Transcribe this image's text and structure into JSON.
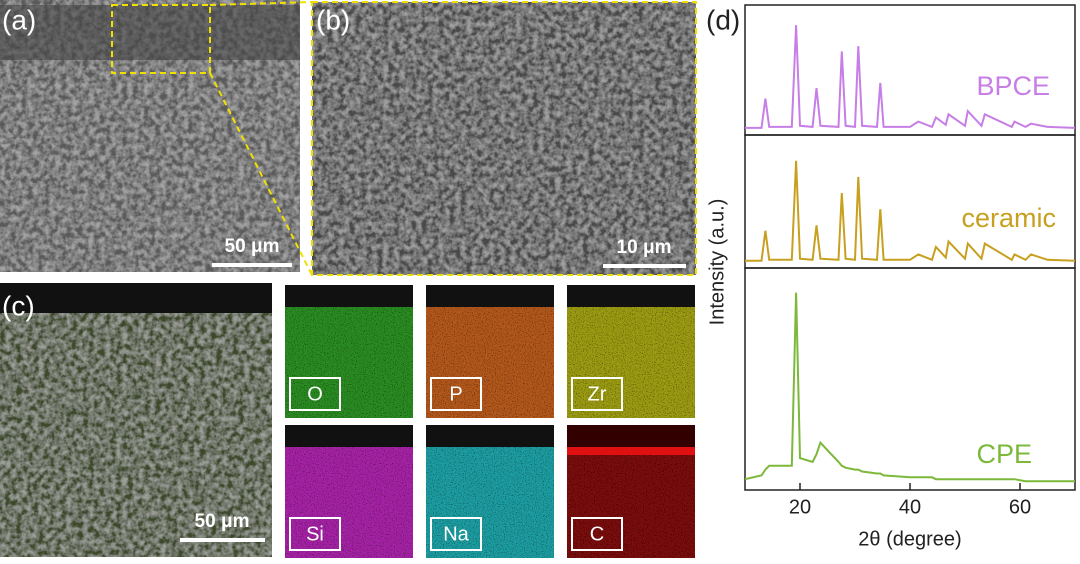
{
  "panels": {
    "a": {
      "label": "(a)",
      "scale_bar": "50 μm"
    },
    "b": {
      "label": "(b)",
      "scale_bar": "10 μm"
    },
    "c": {
      "label": "(c)",
      "scale_bar": "50 μm",
      "elements": [
        "O",
        "P",
        "Zr",
        "Si",
        "Na",
        "C"
      ]
    }
  },
  "chart_data": {
    "type": "line",
    "panel_label": "(d)",
    "x_label": "2θ (degree)",
    "y_label": "Intensity (a.u.)",
    "x": [
      10,
      13,
      13.7,
      14.4,
      18.5,
      19.3,
      20,
      22.3,
      23,
      23.7,
      27,
      27.6,
      28.3,
      30,
      30.6,
      31.3,
      34,
      34.6,
      35.2,
      40,
      41.5,
      44,
      44.7,
      46.5,
      47,
      50,
      50.5,
      53,
      53.6,
      58.5,
      59,
      61,
      62,
      65,
      70
    ],
    "xlim": [
      10,
      70
    ],
    "xticks": [
      20,
      40,
      60
    ],
    "ylim": [
      0,
      105
    ],
    "series": [
      {
        "name": "BPCE",
        "color": "#c77ee6",
        "values": [
          2,
          2,
          30,
          3,
          3,
          100,
          4,
          3,
          40,
          4,
          3,
          75,
          4,
          3,
          80,
          4,
          3,
          45,
          3,
          3,
          8,
          3,
          12,
          5,
          15,
          4,
          18,
          4,
          15,
          3,
          8,
          3,
          6,
          3,
          2
        ]
      },
      {
        "name": "ceramic",
        "color": "#c8a020",
        "values": [
          2,
          2,
          30,
          3,
          3,
          95,
          4,
          3,
          35,
          4,
          3,
          65,
          4,
          3,
          80,
          4,
          3,
          50,
          3,
          3,
          8,
          3,
          15,
          5,
          20,
          4,
          18,
          4,
          18,
          3,
          8,
          3,
          8,
          3,
          2
        ]
      },
      {
        "name": "CPE",
        "color": "#7cb83a",
        "values": [
          3,
          5,
          8,
          10,
          10,
          100,
          14,
          12,
          16,
          22,
          12,
          10,
          9,
          8,
          8,
          7,
          6,
          6,
          5,
          4,
          4,
          4,
          3,
          3,
          3,
          3,
          3,
          3,
          3,
          3,
          3,
          2,
          2,
          2,
          2
        ]
      }
    ]
  }
}
